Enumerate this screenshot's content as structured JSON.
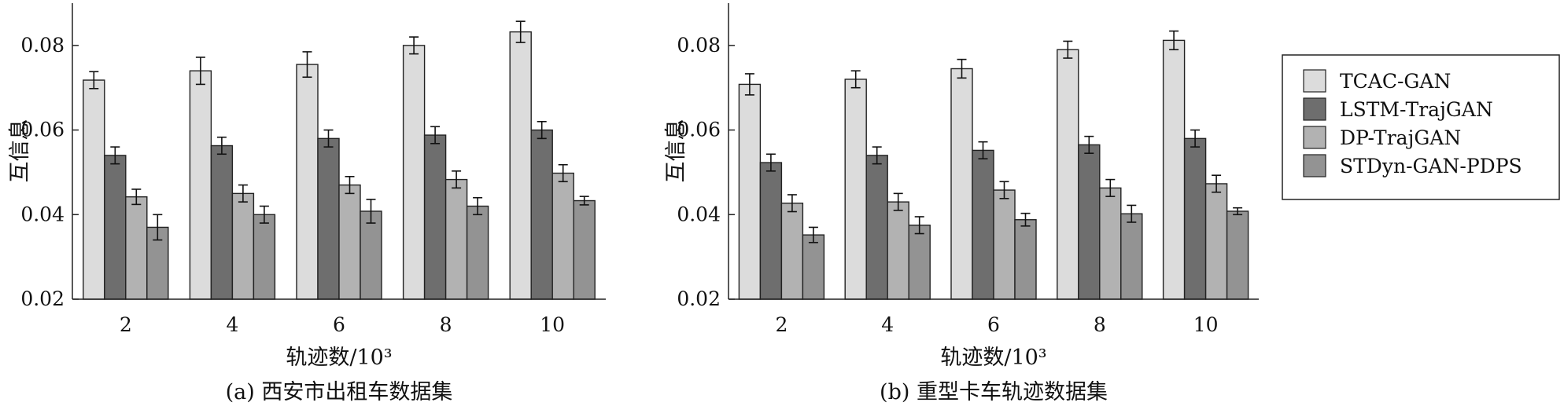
{
  "chart_data": [
    {
      "type": "bar",
      "caption": "(a) 西安市出租车数据集",
      "xlabel": "轨迹数/10³",
      "ylabel": "互信息",
      "categories": [
        "2",
        "4",
        "6",
        "8",
        "10"
      ],
      "y_ticks": [
        "0.02",
        "0.04",
        "0.06",
        "0.08"
      ],
      "ylim": [
        0.02,
        0.09
      ],
      "grid": false,
      "series": [
        {
          "name": "TCAC-GAN",
          "values": [
            0.0718,
            0.074,
            0.0755,
            0.08,
            0.0832
          ],
          "errors": [
            0.002,
            0.0032,
            0.003,
            0.002,
            0.0025
          ]
        },
        {
          "name": "LSTM-TrajGAN",
          "values": [
            0.054,
            0.0563,
            0.058,
            0.0588,
            0.06
          ],
          "errors": [
            0.002,
            0.002,
            0.002,
            0.002,
            0.002
          ]
        },
        {
          "name": "DP-TrajGAN",
          "values": [
            0.0442,
            0.045,
            0.047,
            0.0483,
            0.0498
          ],
          "errors": [
            0.0018,
            0.002,
            0.002,
            0.002,
            0.002
          ]
        },
        {
          "name": "STDyn-GAN-PDPS",
          "values": [
            0.037,
            0.04,
            0.0408,
            0.042,
            0.0433
          ],
          "errors": [
            0.003,
            0.002,
            0.0028,
            0.002,
            0.001
          ]
        }
      ]
    },
    {
      "type": "bar",
      "caption": "(b) 重型卡车轨迹数据集",
      "xlabel": "轨迹数/10³",
      "ylabel": "互信息",
      "categories": [
        "2",
        "4",
        "6",
        "8",
        "10"
      ],
      "y_ticks": [
        "0.02",
        "0.04",
        "0.06",
        "0.08"
      ],
      "ylim": [
        0.02,
        0.09
      ],
      "grid": false,
      "series": [
        {
          "name": "TCAC-GAN",
          "values": [
            0.0708,
            0.072,
            0.0745,
            0.079,
            0.0812
          ],
          "errors": [
            0.0025,
            0.002,
            0.0022,
            0.002,
            0.0022
          ]
        },
        {
          "name": "LSTM-TrajGAN",
          "values": [
            0.0523,
            0.054,
            0.0552,
            0.0565,
            0.058
          ],
          "errors": [
            0.002,
            0.002,
            0.002,
            0.002,
            0.002
          ]
        },
        {
          "name": "DP-TrajGAN",
          "values": [
            0.0427,
            0.043,
            0.0458,
            0.0463,
            0.0473
          ],
          "errors": [
            0.002,
            0.002,
            0.002,
            0.002,
            0.002
          ]
        },
        {
          "name": "STDyn-GAN-PDPS",
          "values": [
            0.0352,
            0.0375,
            0.0388,
            0.0402,
            0.0408
          ],
          "errors": [
            0.0018,
            0.002,
            0.0015,
            0.002,
            0.0008
          ]
        }
      ]
    }
  ],
  "legend": {
    "placement": "right",
    "items": [
      "TCAC-GAN",
      "LSTM-TrajGAN",
      "DP-TrajGAN",
      "STDyn-GAN-PDPS"
    ]
  },
  "colors": {
    "series": [
      "#dcdcdc",
      "#6e6e6e",
      "#b2b2b2",
      "#939393"
    ],
    "stroke": "#222222"
  }
}
